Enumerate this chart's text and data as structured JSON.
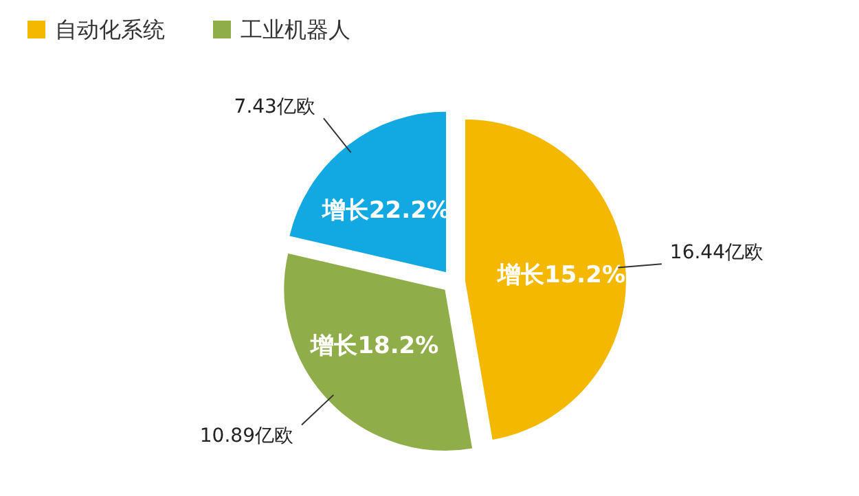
{
  "chart_data": {
    "type": "pie",
    "categories": [
      "自动化系统",
      "工业机器人",
      null
    ],
    "values": [
      16.44,
      10.89,
      7.43
    ],
    "colors": [
      "#f5b800",
      "#8fae4a",
      "#12a9e2"
    ],
    "value_labels": [
      "16.44亿欧",
      "10.89亿欧",
      "7.43亿欧"
    ],
    "annotations": [
      "增长15.2%",
      "增长18.2%",
      "增长22.2%"
    ],
    "legend": "top"
  }
}
